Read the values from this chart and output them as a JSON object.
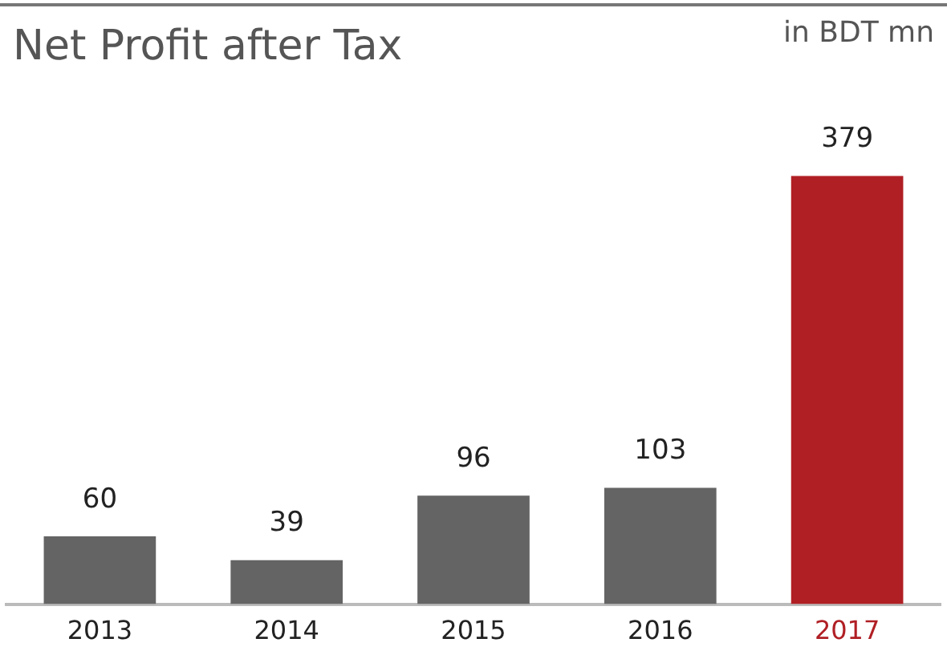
{
  "chart_data": {
    "type": "bar",
    "title": "Net Profit after Tax",
    "subtitle": "in BDT mn",
    "categories": [
      "2013",
      "2014",
      "2015",
      "2016",
      "2017"
    ],
    "values": [
      60,
      39,
      96,
      103,
      379
    ],
    "colors": [
      "#646464",
      "#646464",
      "#646464",
      "#646464",
      "#b01f24"
    ],
    "data_labels": true,
    "grid": false,
    "legend": false
  }
}
